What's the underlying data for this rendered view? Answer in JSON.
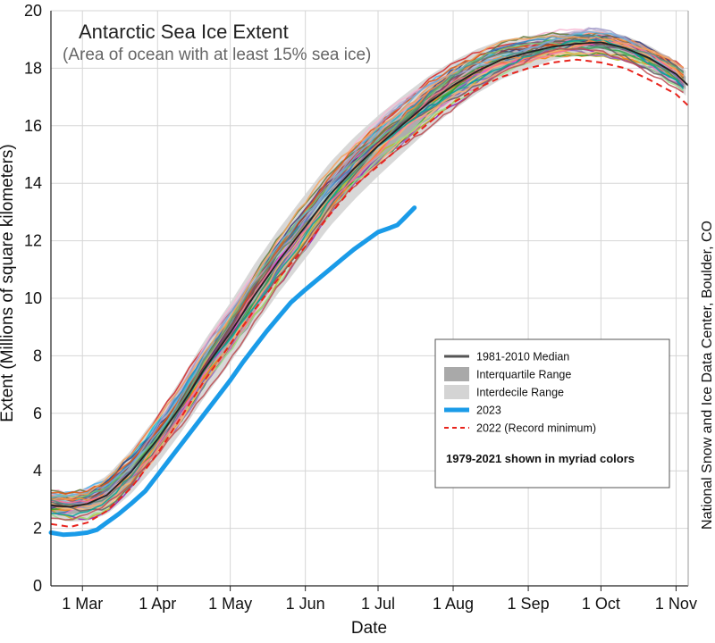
{
  "chart_data": {
    "type": "line",
    "title": "Antarctic Sea Ice Extent",
    "subtitle": "(Area of ocean with at least 15% sea ice)",
    "xlabel": "Date",
    "ylabel": "Extent (Millions of square kilometers)",
    "credit": "National Snow and Ice Data Center, Boulder, CO",
    "ylim": [
      0,
      20
    ],
    "yticks": [
      0,
      2,
      4,
      6,
      8,
      10,
      12,
      14,
      16,
      18,
      20
    ],
    "xlim": [
      47,
      310
    ],
    "xticks": [
      {
        "label": "1 Mar",
        "day": 60
      },
      {
        "label": "1 Apr",
        "day": 91
      },
      {
        "label": "1 May",
        "day": 121
      },
      {
        "label": "1 Jun",
        "day": 152
      },
      {
        "label": "1 Jul",
        "day": 182
      },
      {
        "label": "1 Aug",
        "day": 213
      },
      {
        "label": "1 Sep",
        "day": 244
      },
      {
        "label": "1 Oct",
        "day": 274
      },
      {
        "label": "1 Nov",
        "day": 305
      }
    ],
    "grid": true,
    "legend_position": "lower-right",
    "legend_entries": [
      {
        "label": "1981-2010 Median",
        "style": "median"
      },
      {
        "label": "Interquartile Range",
        "style": "iqr"
      },
      {
        "label": "Interdecile Range",
        "style": "idr"
      },
      {
        "label": "2023",
        "style": "y2023"
      },
      {
        "label": "2022 (Record minimum)",
        "style": "y2022"
      }
    ],
    "legend_note": "1979-2021 shown in myriad colors",
    "colors": {
      "median": "#555555",
      "iqr": "#a9a9a9",
      "idr": "#d4d4d4",
      "y2023": "#1a9be8",
      "y2022": "#e8231c",
      "grid": "#d6d6d6"
    },
    "series": [
      {
        "name": "1981-2010 Median",
        "role": "median",
        "x": [
          47,
          55,
          62,
          70,
          80,
          91,
          101,
          110,
          121,
          131,
          141,
          152,
          162,
          172,
          182,
          193,
          203,
          213,
          223,
          233,
          244,
          254,
          264,
          274,
          284,
          294,
          305,
          310
        ],
        "y": [
          2.8,
          2.75,
          2.85,
          3.15,
          3.95,
          5.1,
          6.3,
          7.5,
          8.8,
          10.1,
          11.3,
          12.5,
          13.6,
          14.5,
          15.3,
          16.1,
          16.8,
          17.4,
          17.9,
          18.3,
          18.55,
          18.75,
          18.85,
          18.9,
          18.7,
          18.35,
          17.8,
          17.4
        ]
      },
      {
        "name": "2022 (Record minimum)",
        "role": "y2022",
        "x": [
          47,
          55,
          62,
          70,
          80,
          91,
          101,
          110,
          121,
          131,
          141,
          152,
          162,
          172,
          182,
          193,
          203,
          213,
          223,
          233,
          244,
          254,
          264,
          274,
          284,
          294,
          305,
          310
        ],
        "y": [
          2.15,
          2.05,
          2.2,
          2.6,
          3.4,
          4.6,
          5.9,
          7.1,
          8.4,
          9.6,
          10.7,
          11.8,
          12.9,
          13.9,
          14.6,
          15.4,
          16.1,
          16.8,
          17.3,
          17.7,
          18.0,
          18.2,
          18.3,
          18.2,
          18.0,
          17.6,
          17.1,
          16.7
        ]
      },
      {
        "name": "2023",
        "role": "y2023",
        "x": [
          47,
          52,
          57,
          62,
          66,
          70,
          75,
          80,
          86,
          91,
          96,
          101,
          106,
          111,
          116,
          121,
          126,
          131,
          136,
          141,
          146,
          152,
          157,
          162,
          167,
          172,
          177,
          182,
          187,
          190,
          193,
          197
        ],
        "y": [
          1.85,
          1.78,
          1.8,
          1.85,
          1.95,
          2.2,
          2.5,
          2.85,
          3.3,
          3.85,
          4.4,
          4.95,
          5.5,
          6.05,
          6.6,
          7.15,
          7.75,
          8.3,
          8.85,
          9.35,
          9.85,
          10.3,
          10.65,
          11.0,
          11.35,
          11.7,
          12.0,
          12.3,
          12.45,
          12.55,
          12.8,
          13.15
        ]
      }
    ]
  }
}
